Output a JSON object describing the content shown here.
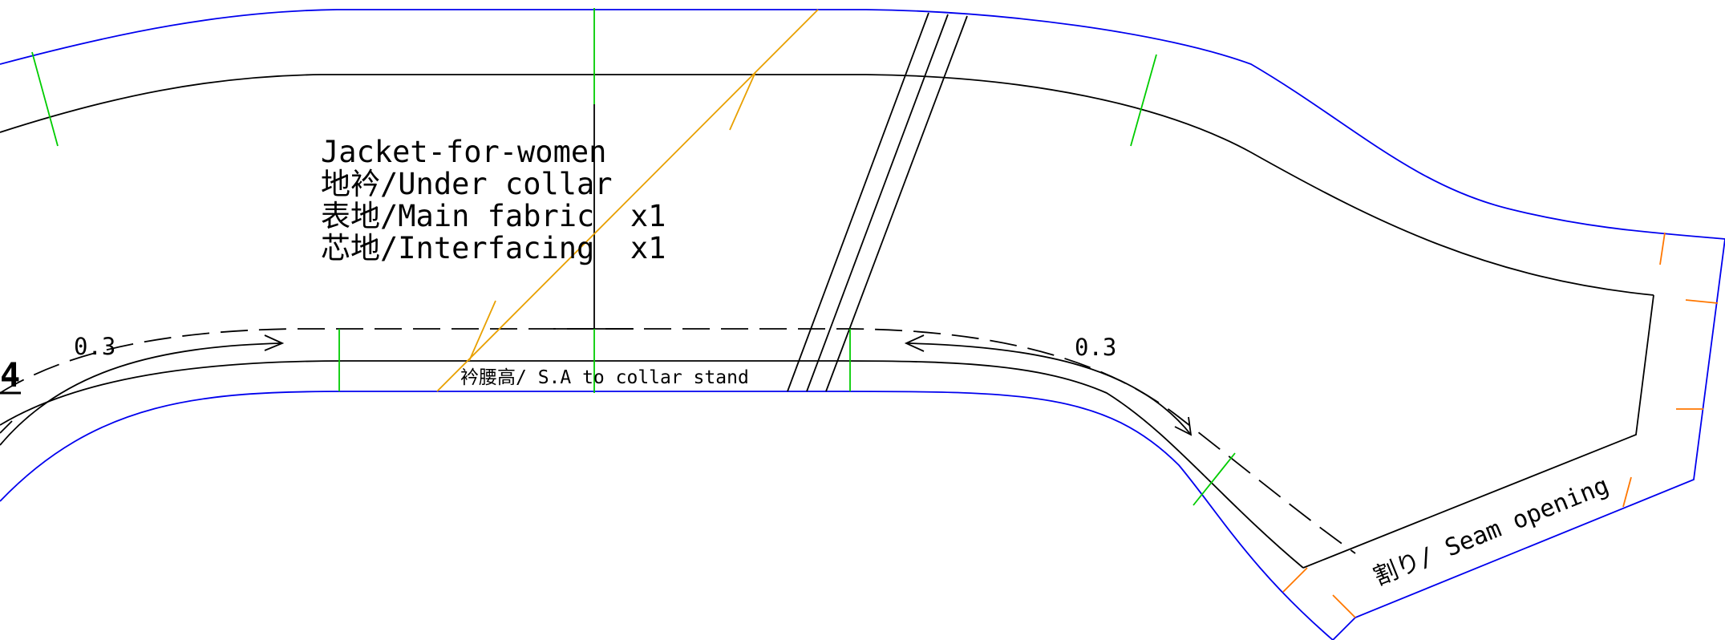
{
  "pattern": {
    "title_block": {
      "line1": "Jacket-for-women",
      "line2": "地衿/Under collar",
      "line3": "表地/Main fabric  x1",
      "line4": "芯地/Interfacing  x1"
    },
    "labels": {
      "collar_stand": "衿腰高/ S.A to collar stand",
      "seam_opening": "割り/ Seam opening",
      "ease_left": "0.3",
      "ease_right": "0.3",
      "piece_number": "4"
    },
    "colors": {
      "cut_line": "#0000ee",
      "seam_line": "#000000",
      "grain_line": "#00cc00",
      "bias_line": "#e8a000",
      "notch": "#ff7700"
    }
  }
}
